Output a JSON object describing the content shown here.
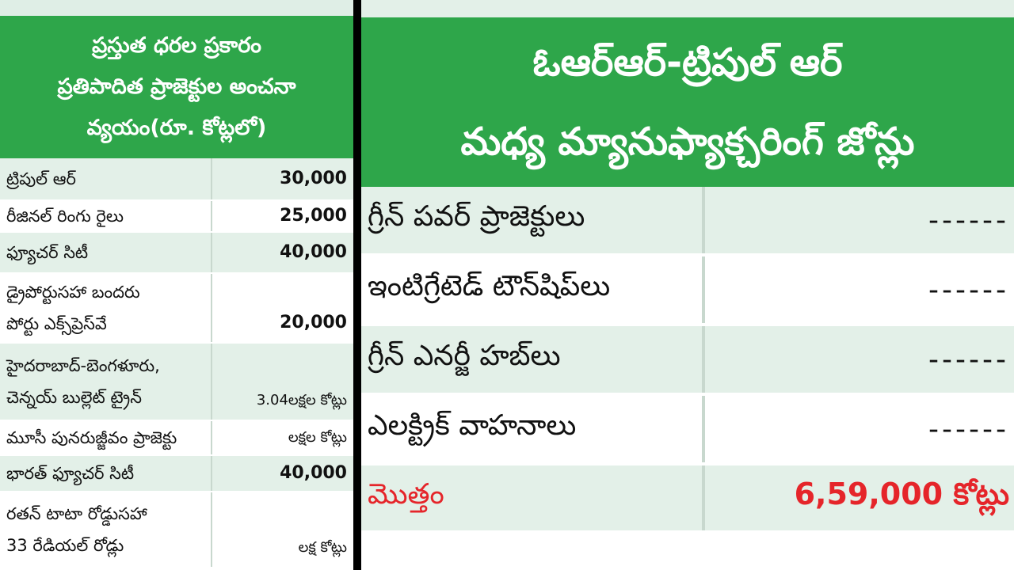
{
  "left": {
    "header_lines": [
      "ప్రస్తుత ధరల ప్రకారం",
      "ప్రతిపాదిత ప్రాజెక్టుల అంచనా",
      "వ్యయం(రూ. కోట్లలో)"
    ],
    "rows": [
      {
        "label_lines": [
          "ట్రిపుల్ ఆర్"
        ],
        "value": "30,000"
      },
      {
        "label_lines": [
          "రీజినల్ రింగు రైలు"
        ],
        "value": "25,000"
      },
      {
        "label_lines": [
          "ఫ్యూచర్ సిటీ"
        ],
        "value": "40,000"
      },
      {
        "label_lines": [
          "డ్రైపోర్టుసహా బందరు",
          "పోర్టు ఎక్స్‌ప్రెస్‌వే"
        ],
        "value": "20,000"
      },
      {
        "label_lines": [
          "హైదరాబాద్-బెంగళూరు,",
          "చెన్నయ్ బుల్లెట్ ట్రైన్"
        ],
        "value": "3.04లక్షల కోట్లు"
      },
      {
        "label_lines": [
          "మూసీ పునరుజ్జీవం ప్రాజెక్టు"
        ],
        "value": "లక్షల కోట్లు"
      },
      {
        "label_lines": [
          "భారత్ ఫ్యూచర్ సిటీ"
        ],
        "value": "40,000"
      },
      {
        "label_lines": [
          "రతన్ టాటా రోడ్డుసహా",
          "33 రేడియల్ రోడ్లు"
        ],
        "value": "లక్ష కోట్లు"
      }
    ]
  },
  "right": {
    "header_line1": "ఓఆర్ఆర్-ట్రిపుల్ ఆర్",
    "header_line2": "మధ్య మ్యానుఫ్యాక్చరింగ్ జోన్లు",
    "rows": [
      {
        "label": "గ్రీన్ పవర్ ప్రాజెక్టులు",
        "value": "------"
      },
      {
        "label": "ఇంటిగ్రేటెడ్ టౌన్‌షిప్‌లు",
        "value": "------"
      },
      {
        "label": "గ్రీన్ ఎనర్జీ హబ్‌లు",
        "value": "------"
      },
      {
        "label": "ఎలక్ట్రిక్ వాహనాలు",
        "value": "------"
      }
    ],
    "total": {
      "label": "మొత్తం",
      "value": "6,59,000 కోట్లు"
    }
  },
  "colors": {
    "green": "#2ea64a",
    "light_green": "#e3f0e8",
    "total_red": "#e5252a",
    "divider": "#000000"
  }
}
